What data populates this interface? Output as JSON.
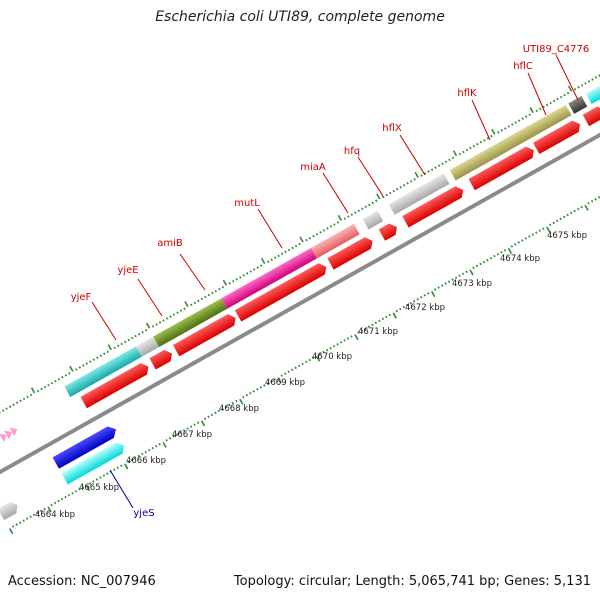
{
  "title": "Escherichia coli UTI89, complete genome",
  "footer": {
    "accession": "Accession: NC_007946",
    "summary": "Topology: circular; Length: 5,065,741 bp; Genes: 5,131"
  },
  "colors": {
    "background": "#ffffff",
    "backbone": "#8a8a8a",
    "tick": "#2e8b2e",
    "cds": "#ff0000",
    "upper_gene_label": "#cc0000",
    "lower_gene_label": "#000099"
  },
  "ruler": {
    "labels": [
      "4664 kbp",
      "4665 kbp",
      "4666 kbp",
      "4667 kbp",
      "4668 kbp",
      "4669 kbp",
      "4670 kbp",
      "4671 kbp",
      "4672 kbp",
      "4673 kbp",
      "4674 kbp",
      "4675 kbp"
    ]
  },
  "genes": {
    "top_strand": [
      {
        "name": "yjeF",
        "color": "#2ec8c8"
      },
      {
        "name": "yjeE",
        "color": "#c8c8c8"
      },
      {
        "name": "amiB",
        "color": "#6b8e23"
      },
      {
        "name": "mutL",
        "color": "#ee1199"
      },
      {
        "name": "miaA",
        "color": "#f08080"
      },
      {
        "name": "hfq",
        "color": "#c8c8c8"
      },
      {
        "name": "hflX",
        "color": "#c0c0c0"
      },
      {
        "name": "hflK",
        "color": "#bdb76b"
      },
      {
        "name": "hflC",
        "color": "#bdb76b"
      },
      {
        "name": "UTI89_C4776",
        "color": "#555555"
      }
    ],
    "bottom_strand": [
      {
        "name": "yjeS",
        "color": "#00ffff"
      },
      {
        "name": "",
        "color": "#0000ee"
      }
    ]
  }
}
